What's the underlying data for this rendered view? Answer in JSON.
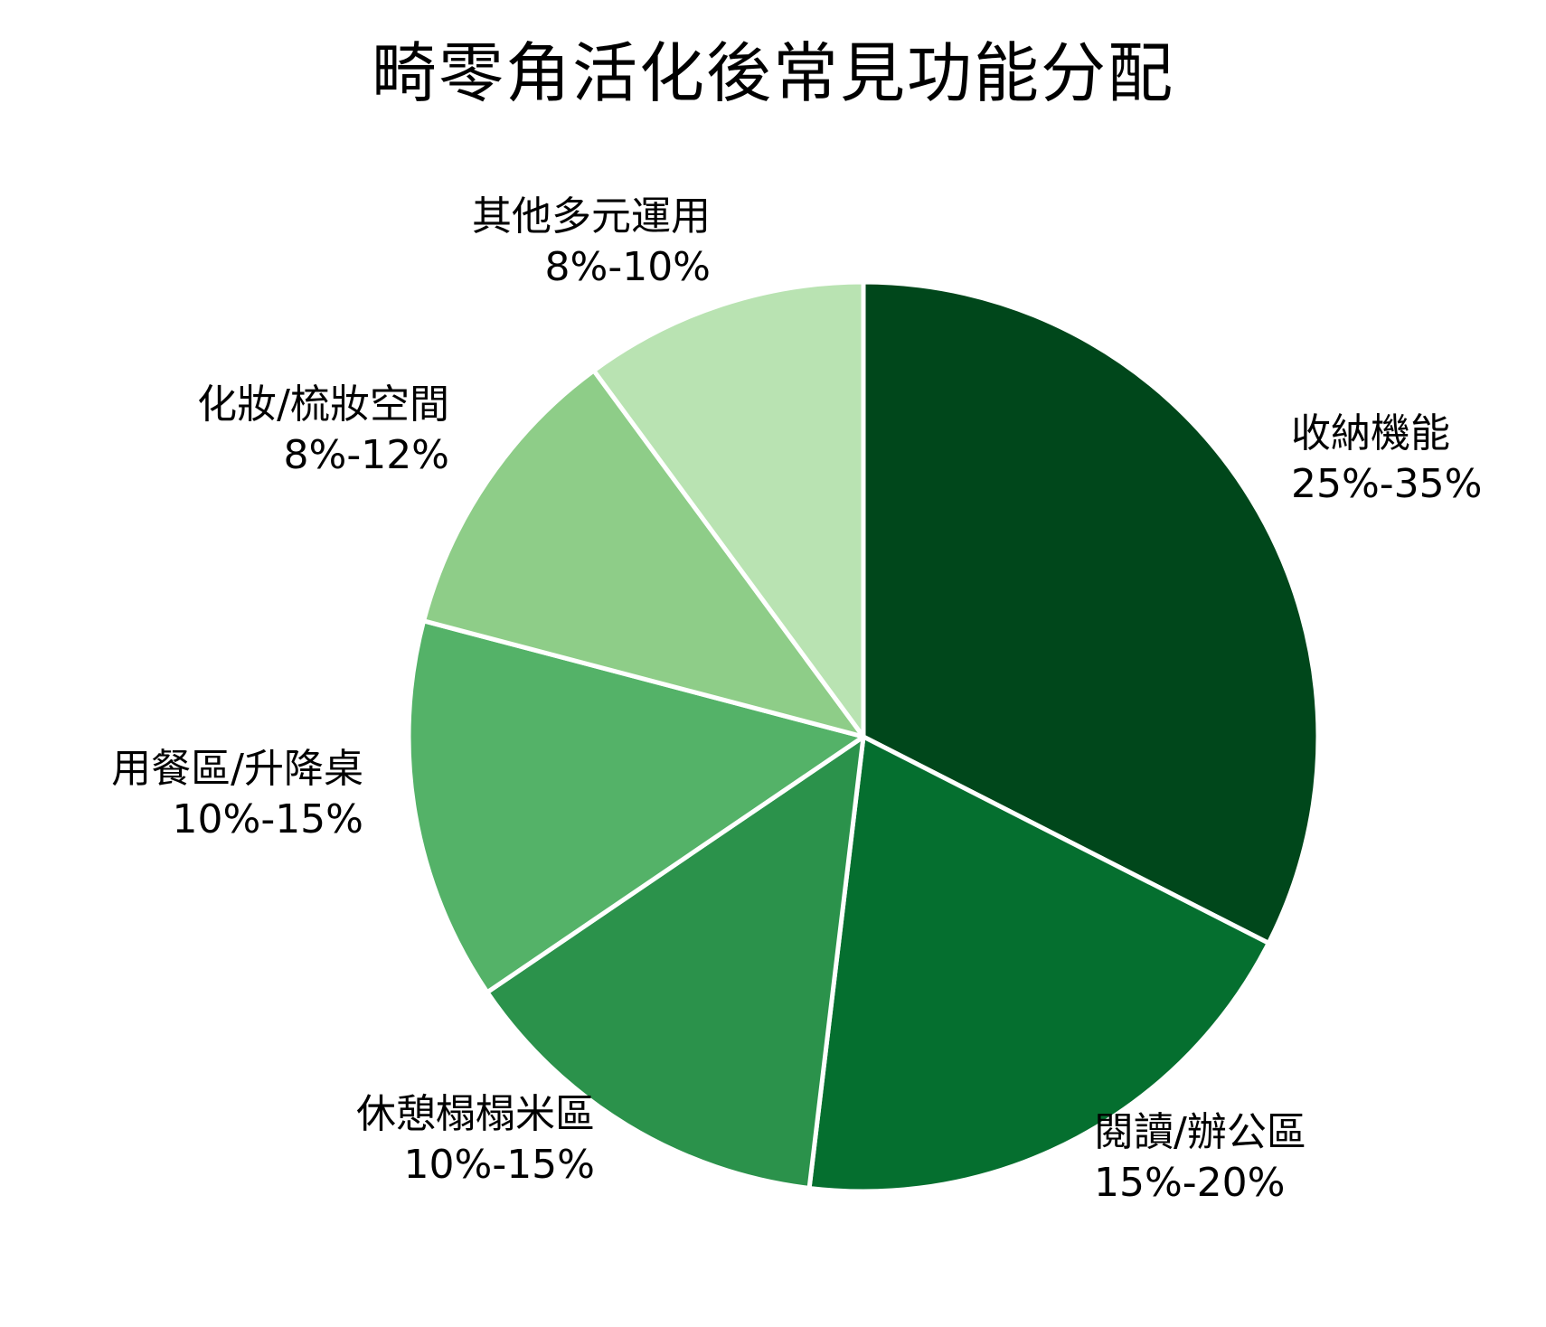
{
  "chart_data": {
    "type": "pie",
    "title": "畸零角活化後常見功能分配",
    "start_angle": "12 o'clock, clockwise",
    "categories": [
      "收納機能",
      "閱讀/辦公區",
      "休憩榻榻米區",
      "用餐區/升降桌",
      "化妝/梳妝空間",
      "其他多元運用"
    ],
    "ranges": [
      "25%-35%",
      "15%-20%",
      "10%-15%",
      "10%-15%",
      "8%-12%",
      "8%-10%"
    ],
    "values": [
      32.5,
      19.4,
      13.6,
      13.6,
      10.8,
      10.1
    ],
    "colors": [
      "#00471b",
      "#056f2f",
      "#2b924b",
      "#54b268",
      "#8ecd88",
      "#b9e3b2"
    ],
    "slice_border_color": "#ffffff",
    "legend": "none (direct labels)"
  },
  "labels": [
    {
      "name": "收納機能",
      "range": "25%-35%"
    },
    {
      "name": "閱讀/辦公區",
      "range": "15%-20%"
    },
    {
      "name": "休憩榻榻米區",
      "range": "10%-15%"
    },
    {
      "name": "用餐區/升降桌",
      "range": "10%-15%"
    },
    {
      "name": "化妝/梳妝空間",
      "range": "8%-12%"
    },
    {
      "name": "其他多元運用",
      "range": "8%-10%"
    }
  ]
}
